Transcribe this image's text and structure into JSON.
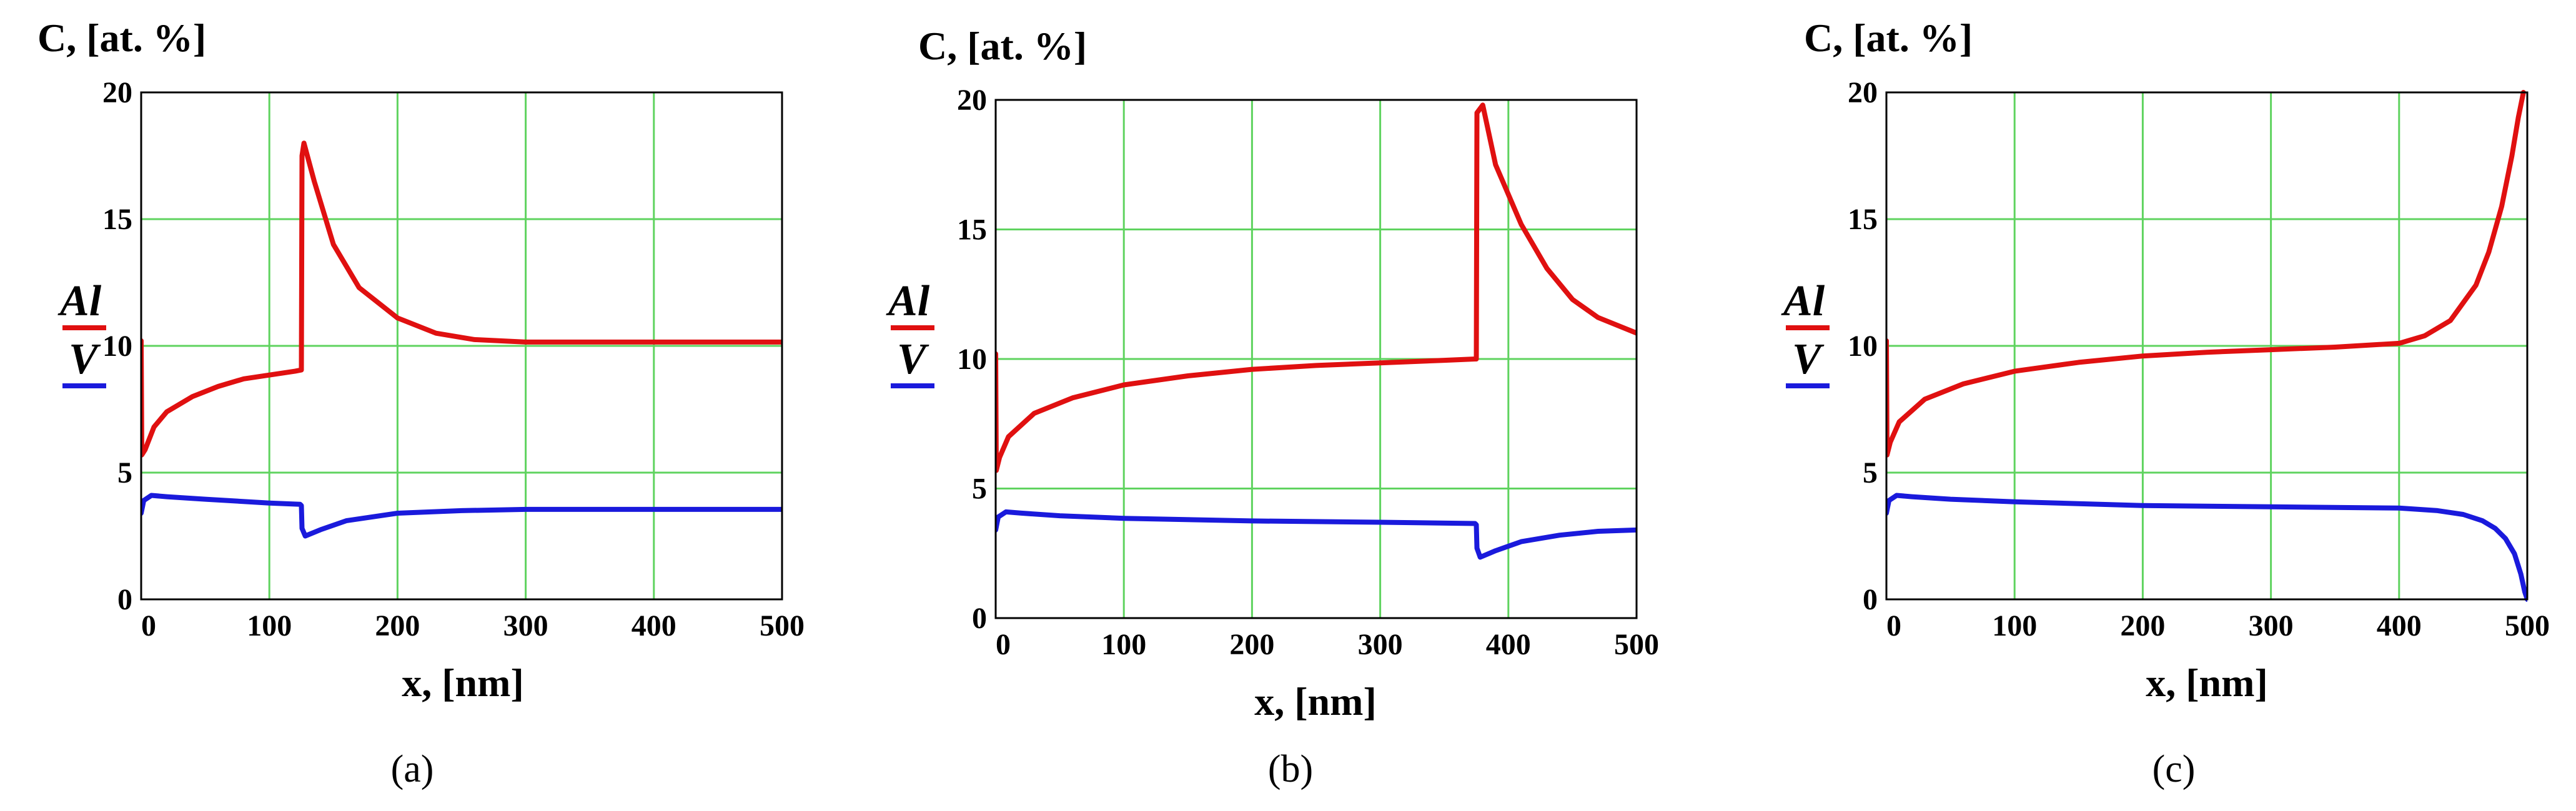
{
  "colors": {
    "al": "#e01010",
    "v": "#1a1adc",
    "grid": "#5fd35f",
    "axis": "#000000"
  },
  "chart_data": [
    {
      "type": "line",
      "caption": "(a)",
      "ylabel": "C, [at. %]",
      "xlabel": "x, [nm]",
      "xlim": [
        0,
        500
      ],
      "ylim": [
        0,
        20
      ],
      "xticks": [
        "0",
        "100",
        "200",
        "300",
        "400",
        "500"
      ],
      "yticks": [
        "0",
        "5",
        "10",
        "15",
        "20"
      ],
      "grid": true,
      "legend": [
        "Al",
        "V"
      ],
      "series": [
        {
          "name": "Al",
          "color": "#e01010",
          "x": [
            0,
            0.5,
            3,
            10,
            20,
            40,
            60,
            80,
            100,
            120,
            125,
            125.5,
            127,
            135,
            150,
            170,
            200,
            230,
            260,
            300,
            350,
            400,
            500
          ],
          "y": [
            10.2,
            5.7,
            5.9,
            6.8,
            7.4,
            8.0,
            8.4,
            8.7,
            8.85,
            9.0,
            9.05,
            17.5,
            18.0,
            16.5,
            14.0,
            12.3,
            11.1,
            10.5,
            10.25,
            10.15,
            10.15,
            10.15,
            10.15
          ]
        },
        {
          "name": "V",
          "color": "#1a1adc",
          "x": [
            0,
            2,
            8,
            20,
            50,
            100,
            124,
            125,
            125.5,
            128,
            140,
            160,
            200,
            250,
            300,
            400,
            500
          ],
          "y": [
            3.4,
            3.9,
            4.1,
            4.05,
            3.95,
            3.8,
            3.75,
            3.7,
            2.8,
            2.5,
            2.75,
            3.1,
            3.4,
            3.5,
            3.55,
            3.55,
            3.55
          ]
        }
      ]
    },
    {
      "type": "line",
      "caption": "(b)",
      "ylabel": "C, [at. %]",
      "xlabel": "x, [nm]",
      "xlim": [
        0,
        500
      ],
      "ylim": [
        0,
        20
      ],
      "xticks": [
        "0",
        "100",
        "200",
        "300",
        "400",
        "500"
      ],
      "yticks": [
        "0",
        "5",
        "10",
        "15",
        "20"
      ],
      "grid": true,
      "legend": [
        "Al",
        "V"
      ],
      "series": [
        {
          "name": "Al",
          "color": "#e01010",
          "x": [
            0,
            0.5,
            3,
            10,
            30,
            60,
            100,
            150,
            200,
            250,
            300,
            350,
            374,
            375,
            375.5,
            380,
            390,
            410,
            430,
            450,
            470,
            500
          ],
          "y": [
            10.2,
            5.7,
            6.2,
            7.0,
            7.9,
            8.5,
            9.0,
            9.35,
            9.6,
            9.75,
            9.85,
            9.95,
            10.0,
            10.0,
            19.5,
            19.8,
            17.5,
            15.2,
            13.5,
            12.3,
            11.6,
            11.0
          ]
        },
        {
          "name": "V",
          "color": "#1a1adc",
          "x": [
            0,
            2,
            8,
            20,
            50,
            100,
            200,
            300,
            374,
            375,
            375.5,
            378,
            390,
            410,
            440,
            470,
            500
          ],
          "y": [
            3.4,
            3.9,
            4.1,
            4.05,
            3.95,
            3.85,
            3.75,
            3.7,
            3.65,
            3.6,
            2.7,
            2.35,
            2.6,
            2.95,
            3.2,
            3.35,
            3.4
          ]
        }
      ]
    },
    {
      "type": "line",
      "caption": "(c)",
      "ylabel": "C, [at. %]",
      "xlabel": "x, [nm]",
      "xlim": [
        0,
        500
      ],
      "ylim": [
        0,
        20
      ],
      "xticks": [
        "0",
        "100",
        "200",
        "300",
        "400",
        "500"
      ],
      "yticks": [
        "0",
        "5",
        "10",
        "15",
        "20"
      ],
      "grid": true,
      "legend": [
        "Al",
        "V"
      ],
      "series": [
        {
          "name": "Al",
          "color": "#e01010",
          "x": [
            0,
            0.5,
            3,
            10,
            30,
            60,
            100,
            150,
            200,
            250,
            300,
            350,
            400,
            420,
            440,
            460,
            470,
            480,
            488,
            493,
            497
          ],
          "y": [
            10.2,
            5.7,
            6.2,
            7.0,
            7.9,
            8.5,
            9.0,
            9.35,
            9.6,
            9.75,
            9.85,
            9.95,
            10.1,
            10.4,
            11.0,
            12.4,
            13.7,
            15.5,
            17.5,
            19.0,
            20.0
          ]
        },
        {
          "name": "V",
          "color": "#1a1adc",
          "x": [
            0,
            2,
            8,
            20,
            50,
            100,
            200,
            300,
            400,
            430,
            450,
            465,
            475,
            483,
            490,
            495,
            498,
            500
          ],
          "y": [
            3.4,
            3.9,
            4.1,
            4.05,
            3.95,
            3.85,
            3.7,
            3.65,
            3.6,
            3.5,
            3.35,
            3.1,
            2.8,
            2.4,
            1.8,
            1.0,
            0.3,
            0.0
          ]
        }
      ]
    }
  ]
}
